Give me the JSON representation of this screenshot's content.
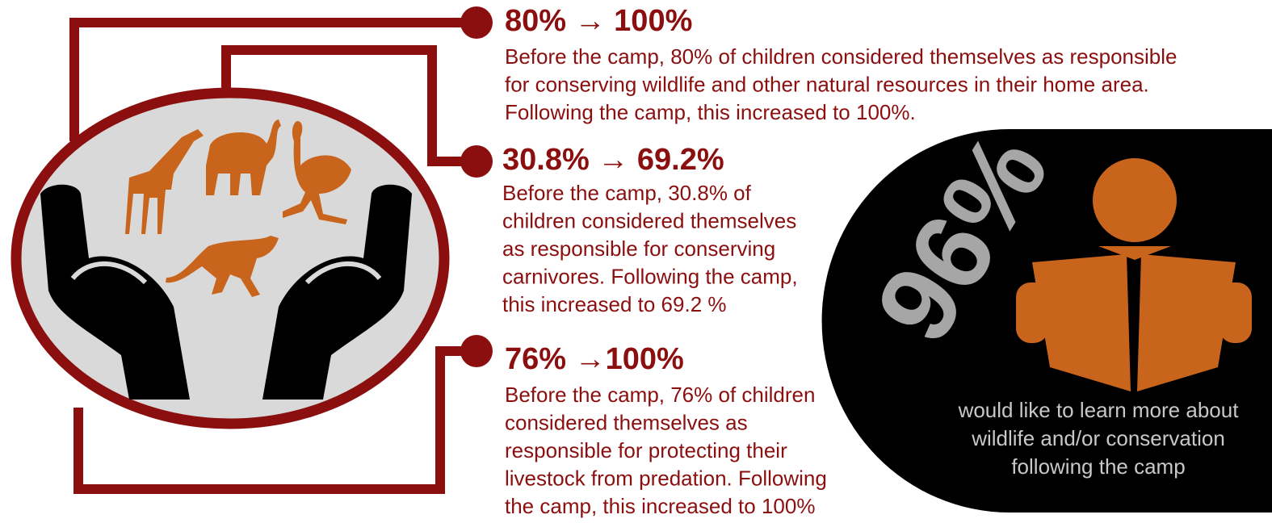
{
  "items": [
    {
      "heading": "80% → 100%",
      "lines": [
        "Before the camp, 80% of children considered themselves as responsible",
        "for conserving wildlife and other natural resources in their home area.",
        "Following the camp, this increased to 100%."
      ]
    },
    {
      "heading": "30.8% → 69.2%",
      "lines": [
        "Before the camp, 30.8% of",
        "children considered themselves",
        "as responsible for conserving",
        "carnivores. Following the camp,",
        "this increased to 69.2 %"
      ]
    },
    {
      "heading": "76% →100%",
      "lines": [
        "Before the camp, 76% of children",
        "considered themselves as",
        "responsible for protecting their",
        "livestock from predation. Following",
        "the camp, this increased to 100%"
      ]
    }
  ],
  "highlight": {
    "value": "96%",
    "caption": [
      "would like to learn more about",
      "wildlife and/or conservation",
      "following the camp"
    ]
  }
}
